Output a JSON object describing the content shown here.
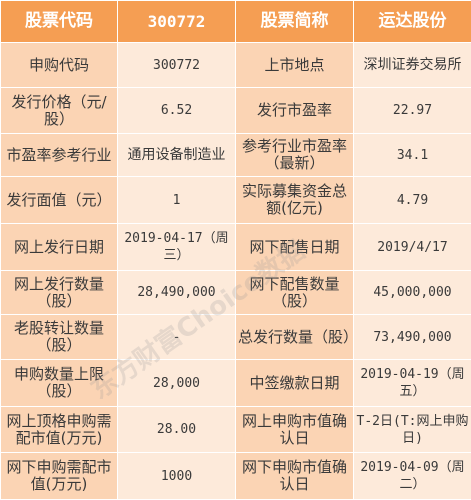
{
  "header": {
    "c1": "股票代码",
    "c2": "300772",
    "c3": "股票简称",
    "c4": "运达股份"
  },
  "rows": [
    {
      "l1": "申购代码",
      "v1": "300772",
      "l2": "上市地点",
      "v2": "深圳证券交易所"
    },
    {
      "l1": "发行价格（元/股）",
      "v1": "6.52",
      "l2": "发行市盈率",
      "v2": "22.97"
    },
    {
      "l1": "市盈率参考行业",
      "v1": "通用设备制造业",
      "l2": "参考行业市盈率（最新）",
      "v2": "34.1"
    },
    {
      "l1": "发行面值（元）",
      "v1": "1",
      "l2": "实际募集资金总额(亿元)",
      "v2": "4.79"
    },
    {
      "l1": "网上发行日期",
      "v1": "2019-04-17（周三）",
      "l2": "网下配售日期",
      "v2": "2019/4/17"
    },
    {
      "l1": "网上发行数量（股）",
      "v1": "28,490,000",
      "l2": "网下配售数量（股）",
      "v2": "45,000,000"
    },
    {
      "l1": "老股转让数量（股）",
      "v1": "-",
      "l2": "总发行数量（股）",
      "v2": "73,490,000"
    },
    {
      "l1": "申购数量上限（股）",
      "v1": "28,000",
      "l2": "中签缴款日期",
      "v2": "2019-04-19（周五）"
    },
    {
      "l1": "网上顶格申购需配市值(万元)",
      "v1": "28.00",
      "l2": "网上申购市值确认日",
      "v2": "T-2日(T:网上申购日)"
    },
    {
      "l1": "网下申购需配市值(万元)",
      "v1": "1000",
      "l2": "网下申购市值确认日",
      "v2": "2019-04-09（周二）"
    }
  ],
  "watermark": "东方财富Choice数据"
}
